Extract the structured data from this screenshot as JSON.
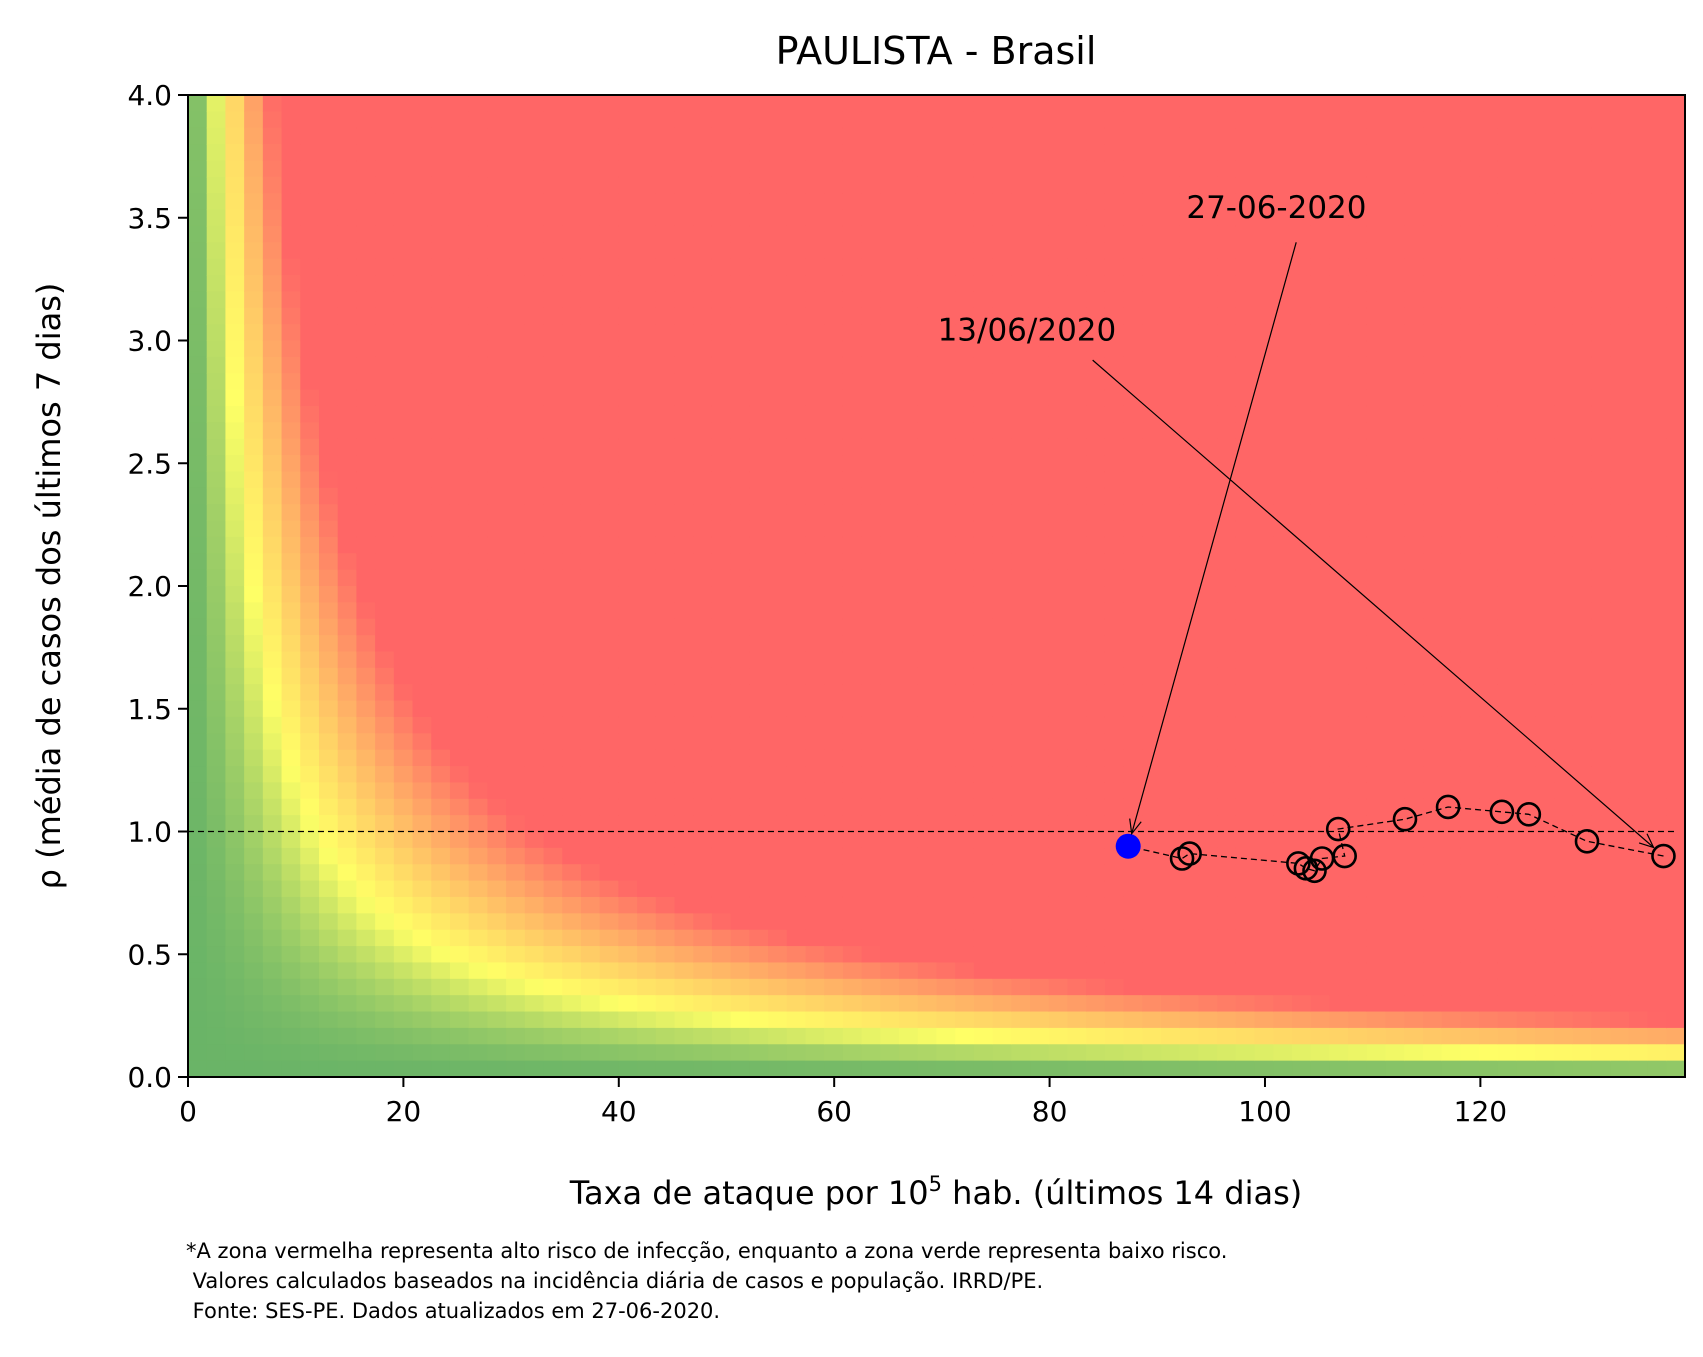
{
  "chart_data": {
    "type": "scatter",
    "title": "PAULISTA - Brasil",
    "xlabel_main": "Taxa de ataque por 10",
    "xlabel_sup": "5",
    "xlabel_rest": " hab. (últimos 14 dias)",
    "ylabel": "ρ (média de casos dos últimos 7 dias)",
    "xlim": [
      0,
      139
    ],
    "ylim": [
      0,
      4.0
    ],
    "xticks": [
      0,
      20,
      40,
      60,
      80,
      100,
      120
    ],
    "xtick_labels": [
      "0",
      "20",
      "40",
      "60",
      "80",
      "100",
      "120"
    ],
    "yticks": [
      0,
      0.5,
      1.0,
      1.5,
      2.0,
      2.5,
      3.0,
      3.5,
      4.0
    ],
    "ytick_labels": [
      "0.0",
      "0.5",
      "1.0",
      "1.5",
      "2.0",
      "2.5",
      "3.0",
      "3.5",
      "4.0"
    ],
    "reference_line_y": 1.0,
    "background": "risk heatmap: green (low) → yellow → red (high), rising with x·ρ",
    "colors": {
      "green": "#6ab467",
      "yellow": "#ffff66",
      "red": "#ff6666",
      "current_point": "#0000ff",
      "open_marker": "#000000"
    },
    "series": [
      {
        "marker": "open-circle",
        "x": [
          137.0,
          129.9,
          124.5,
          122.0,
          117.0,
          113.0,
          106.8,
          107.4,
          105.3,
          104.6,
          103.8,
          103.1,
          93.0,
          92.3
        ],
        "y": [
          0.9,
          0.96,
          1.07,
          1.08,
          1.1,
          1.05,
          1.01,
          0.9,
          0.89,
          0.84,
          0.85,
          0.87,
          0.91,
          0.89
        ]
      },
      {
        "marker": "filled-circle",
        "x": [
          87.3
        ],
        "y": [
          0.94
        ]
      }
    ],
    "annotations": [
      {
        "text": "13/06/2020",
        "text_x": 69.6,
        "text_y": 3.0,
        "arrow_from_x": 84.0,
        "arrow_from_y": 2.92,
        "target_x": 137.0,
        "target_y": 0.9
      },
      {
        "text": "27-06-2020",
        "text_x": 92.7,
        "text_y": 3.5,
        "arrow_from_x": 102.9,
        "arrow_from_y": 3.4,
        "target_x": 87.3,
        "target_y": 0.94
      }
    ]
  },
  "footnote": {
    "line1": "*A zona vermelha representa alto risco de infecção, enquanto a zona verde representa baixo risco.",
    "line2": " Valores calculados baseados na incidência diária de casos e população. IRRD/PE.",
    "line3": " Fonte: SES-PE. Dados atualizados em 27-06-2020."
  }
}
